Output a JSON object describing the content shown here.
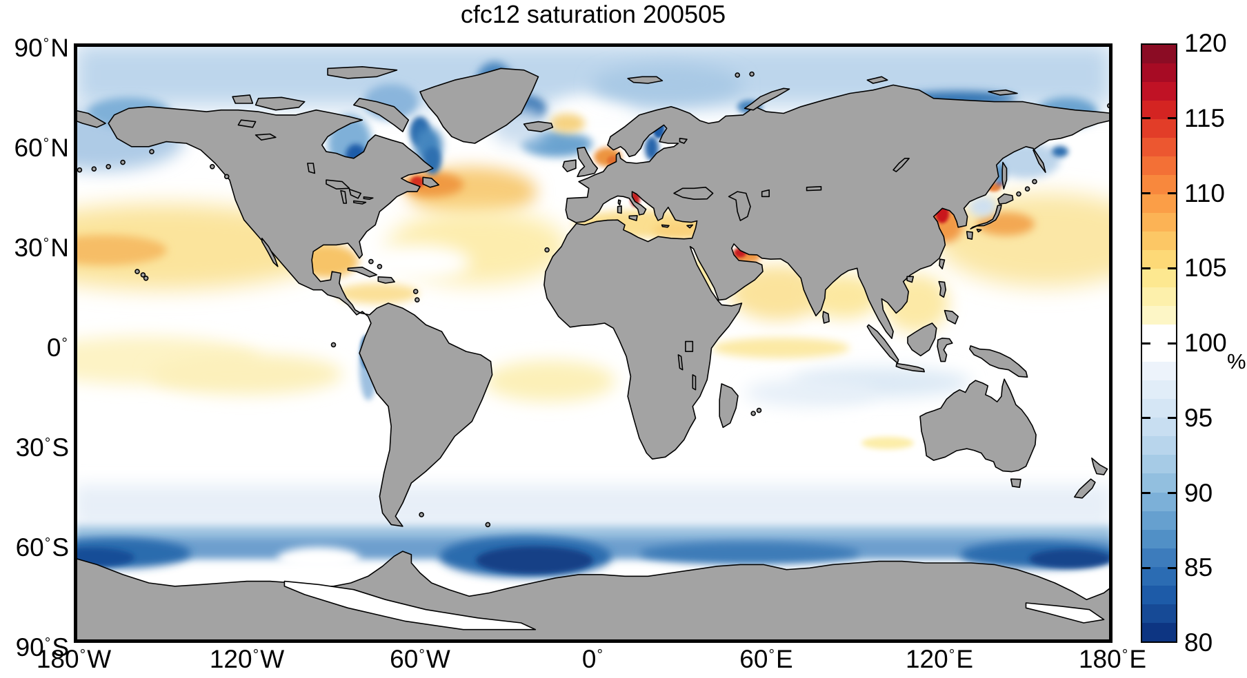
{
  "title": "cfc12 saturation 200505",
  "axes": {
    "y_ticks": [
      {
        "label": "90",
        "hem": "N"
      },
      {
        "label": "60",
        "hem": "N"
      },
      {
        "label": "30",
        "hem": "N"
      },
      {
        "label": "0",
        "hem": ""
      },
      {
        "label": "30",
        "hem": "S"
      },
      {
        "label": "60",
        "hem": "S"
      },
      {
        "label": "90",
        "hem": "S"
      }
    ],
    "x_ticks": [
      {
        "label": "180",
        "hem": "W"
      },
      {
        "label": "120",
        "hem": "W"
      },
      {
        "label": "60",
        "hem": "W"
      },
      {
        "label": "0",
        "hem": ""
      },
      {
        "label": "60",
        "hem": "E"
      },
      {
        "label": "120",
        "hem": "E"
      },
      {
        "label": "180",
        "hem": "E"
      }
    ]
  },
  "colorbar": {
    "tick_labels": [
      "120",
      "115",
      "110",
      "105",
      "100",
      "95",
      "90",
      "85",
      "80"
    ],
    "unit": "%"
  },
  "chart_data": {
    "type": "heatmap",
    "title": "cfc12 saturation 200505",
    "variable": "cfc12 saturation",
    "time": "200505",
    "unit": "%",
    "projection": "equirectangular world map",
    "lon_range": [
      -180,
      180
    ],
    "lat_range": [
      -90,
      90
    ],
    "x_tick_labels": [
      "180° W",
      "120° W",
      "60° W",
      "0°",
      "60° E",
      "120° E",
      "180° E"
    ],
    "y_tick_labels": [
      "90° N",
      "60° N",
      "30° N",
      "0°",
      "30° S",
      "60° S",
      "90° S"
    ],
    "colorbar_range": [
      80,
      120
    ],
    "colorbar_ticks": [
      80,
      85,
      90,
      95,
      100,
      105,
      110,
      115,
      120
    ],
    "colorbar_levels": 32,
    "colormap": [
      "#0d3582",
      "#164a96",
      "#1d5ba8",
      "#2b6cb3",
      "#3d7cbc",
      "#5190c6",
      "#66a0cf",
      "#7cb0d8",
      "#92bfdf",
      "#a6cbe6",
      "#b8d5ec",
      "#c8def1",
      "#d5e6f5",
      "#e1edf8",
      "#edf3fb",
      "#ffffff",
      "#ffffff",
      "#fdf6c6",
      "#fdf0ab",
      "#fde890",
      "#fdd977",
      "#fcc765",
      "#fcb355",
      "#fb9e47",
      "#f8883d",
      "#f37036",
      "#ec5730",
      "#e23d28",
      "#d42422",
      "#c01225",
      "#a70b24",
      "#8b0c24"
    ],
    "land_color": "#a3a3a3",
    "coastline_color": "#000000",
    "ocean_base_color": "#ffffff",
    "masked_seas_drawn_as_land": [
      "Black Sea",
      "Caspian Sea",
      "Great Lakes",
      "Lake Baikal",
      "African rift lakes"
    ],
    "regions_approx_value_percent": {
      "arctic_ocean": 93,
      "bering_sea": 94,
      "hudson_bay": 88,
      "labrador_sea": 86,
      "gulf_of_st_lawrence": 114,
      "gulf_stream_plume_nw_atlantic": 106,
      "north_pacific_subtropics": 104,
      "north_atlantic_subtropics": 103,
      "gulf_of_mexico": 104,
      "mediterranean_sea": 104,
      "adriatic_sea": 114,
      "north_sea": 108,
      "baltic_sea": 87,
      "norwegian_sea": 98,
      "barents_sea": 95,
      "east_greenland_current": 88,
      "red_sea": 102,
      "persian_gulf": 114,
      "arabian_sea": 103,
      "bay_of_bengal": 103,
      "south_china_sea": 102,
      "bohai_and_yellow_sea": 118,
      "sea_of_japan": 99,
      "kuroshio_east_of_japan": 104,
      "sea_of_okhotsk": 95,
      "equatorial_pacific": 101,
      "peru_chile_upwelling": 93,
      "tropical_indian_ocean": 101,
      "southern_subtropics": 100,
      "southern_mid_latitudes_40s_55s": 97,
      "southern_ocean_60s_band": 89,
      "weddell_sea": 81,
      "ross_sea_sector": 84,
      "antarctic_coastal_waters": 82
    }
  }
}
